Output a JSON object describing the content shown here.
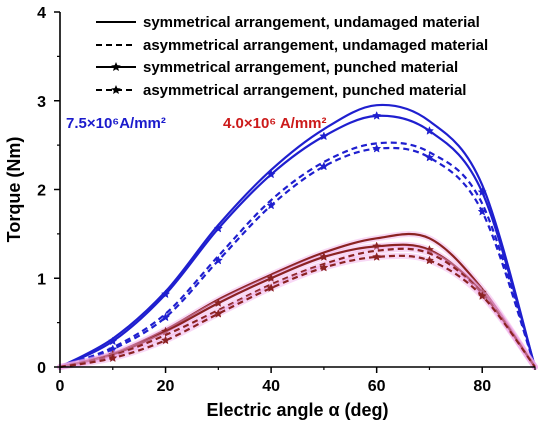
{
  "chart_data": {
    "type": "line",
    "xlabel": "Electric angle α (deg)",
    "ylabel": "Torque (Nm)",
    "xlim": [
      0,
      90
    ],
    "ylim": [
      0,
      4
    ],
    "x_ticks": [
      0,
      20,
      40,
      60,
      80
    ],
    "y_ticks": [
      0,
      1,
      2,
      3,
      4
    ],
    "grid": false,
    "legend_position": "top-right",
    "legend": [
      {
        "label": "symmetrical arrangement, undamaged material",
        "style": "solid",
        "marker": "none"
      },
      {
        "label": "asymmetrical arrangement, undamaged material",
        "style": "dashed",
        "marker": "none"
      },
      {
        "label": "symmetrical arrangement, punched material",
        "style": "solid",
        "marker": "star"
      },
      {
        "label": "asymmetrical arrangement, punched material",
        "style": "dashed",
        "marker": "star"
      }
    ],
    "annotations": [
      {
        "text": "7.5×10⁶A/mm²",
        "color": "#1a1acc"
      },
      {
        "text": "4.0×10⁶ A/mm²",
        "color": "#cc1a1a"
      }
    ],
    "x": [
      0,
      10,
      20,
      30,
      40,
      50,
      60,
      70,
      80,
      90
    ],
    "series": [
      {
        "group": "7.5e6",
        "style": "solid",
        "marker": "none",
        "color": "#1f1fcf",
        "values": [
          0,
          0.32,
          0.85,
          1.6,
          2.22,
          2.68,
          2.95,
          2.77,
          2.05,
          0
        ]
      },
      {
        "group": "7.5e6",
        "style": "solid",
        "marker": "star",
        "color": "#1f1fcf",
        "values": [
          0,
          0.29,
          0.82,
          1.56,
          2.17,
          2.6,
          2.83,
          2.66,
          1.97,
          0
        ]
      },
      {
        "group": "7.5e6",
        "style": "dashed",
        "marker": "none",
        "color": "#1f1fcf",
        "values": [
          0,
          0.22,
          0.6,
          1.25,
          1.88,
          2.31,
          2.52,
          2.42,
          1.84,
          0
        ]
      },
      {
        "group": "7.5e6",
        "style": "dashed",
        "marker": "star",
        "color": "#1f1fcf",
        "values": [
          0,
          0.2,
          0.56,
          1.2,
          1.82,
          2.26,
          2.46,
          2.36,
          1.75,
          0
        ]
      },
      {
        "group": "4.0e6",
        "style": "solid",
        "marker": "none",
        "color": "#8b2222",
        "values": [
          0,
          0.15,
          0.42,
          0.76,
          1.04,
          1.29,
          1.45,
          1.45,
          0.88,
          0
        ]
      },
      {
        "group": "4.0e6",
        "style": "solid",
        "marker": "star",
        "color": "#8b2222",
        "values": [
          0,
          0.14,
          0.4,
          0.72,
          1.0,
          1.24,
          1.36,
          1.32,
          0.84,
          0
        ]
      },
      {
        "group": "4.0e6",
        "style": "dashed",
        "marker": "none",
        "color": "#8b2222",
        "values": [
          0,
          0.13,
          0.36,
          0.64,
          0.93,
          1.16,
          1.31,
          1.28,
          0.83,
          0
        ]
      },
      {
        "group": "4.0e6",
        "style": "dashed",
        "marker": "star",
        "color": "#8b2222",
        "values": [
          0,
          0.1,
          0.3,
          0.6,
          0.89,
          1.12,
          1.24,
          1.2,
          0.8,
          0
        ]
      }
    ]
  }
}
